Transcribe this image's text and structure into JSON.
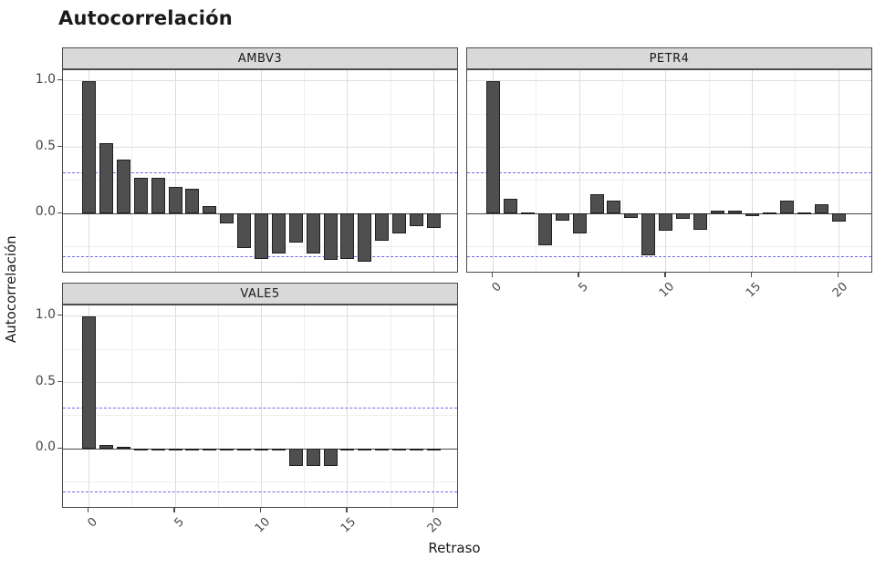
{
  "title": "Autocorrelación",
  "colors": {
    "bar_fill": "#4f4f4f",
    "bar_stroke": "#1f1f1f",
    "ci": "#6b6beb",
    "strip_bg": "#d9d9d9",
    "border": "#4d4d4d",
    "grid_major": "#dcdcdc",
    "grid_minor": "#eeeeee",
    "zero_line": "#454545",
    "axis_text": "#474747",
    "text": "#1a1a1a"
  },
  "chart_data": {
    "type": "bar",
    "title": "Autocorrelación",
    "xlabel": "Retraso",
    "ylabel": "Autocorrelación",
    "legend": "none",
    "grid": "on",
    "x": [
      0,
      1,
      2,
      3,
      4,
      5,
      6,
      7,
      8,
      9,
      10,
      11,
      12,
      13,
      14,
      15,
      16,
      17,
      18,
      19,
      20
    ],
    "facets": [
      {
        "label": "AMBV3",
        "values": [
          1.0,
          0.53,
          0.41,
          0.27,
          0.27,
          0.2,
          0.19,
          0.06,
          -0.07,
          -0.26,
          -0.34,
          -0.3,
          -0.22,
          -0.3,
          -0.35,
          -0.34,
          -0.36,
          -0.2,
          -0.15,
          -0.09,
          -0.11
        ]
      },
      {
        "label": "PETR4",
        "values": [
          1.0,
          0.11,
          0.01,
          -0.24,
          -0.05,
          -0.15,
          0.15,
          0.1,
          -0.03,
          -0.31,
          -0.13,
          -0.04,
          -0.12,
          0.02,
          0.02,
          -0.02,
          0.01,
          0.1,
          0.01,
          0.07,
          -0.06
        ]
      },
      {
        "label": "VALE5",
        "values": [
          1.0,
          0.03,
          0.015,
          -0.01,
          -0.01,
          -0.01,
          -0.01,
          -0.01,
          -0.01,
          -0.01,
          -0.005,
          -0.01,
          -0.13,
          -0.13,
          -0.13,
          -0.01,
          -0.01,
          -0.01,
          -0.005,
          -0.01,
          -0.01
        ]
      }
    ],
    "x_ticks": [
      {
        "label": "0",
        "value": 0
      },
      {
        "label": "5",
        "value": 5
      },
      {
        "label": "10",
        "value": 10
      },
      {
        "label": "15",
        "value": 15
      },
      {
        "label": "20",
        "value": 20
      }
    ],
    "y_ticks": [
      {
        "label": "1.0",
        "value": 1.0
      },
      {
        "label": "0.5",
        "value": 0.5
      },
      {
        "label": "0.0",
        "value": 0.0
      }
    ],
    "xlim": [
      -1.5,
      21.5
    ],
    "ylim": [
      -0.45,
      1.08
    ],
    "grid_major_y": [
      0,
      0.5,
      1.0
    ],
    "grid_minor_y": [
      -0.25,
      0.25,
      0.75
    ],
    "grid_major_x": [
      0,
      5,
      10,
      15,
      20
    ],
    "grid_minor_x": [
      2.5,
      7.5,
      12.5,
      17.5
    ],
    "ci_upper": 0.31,
    "ci_lower": -0.32
  }
}
